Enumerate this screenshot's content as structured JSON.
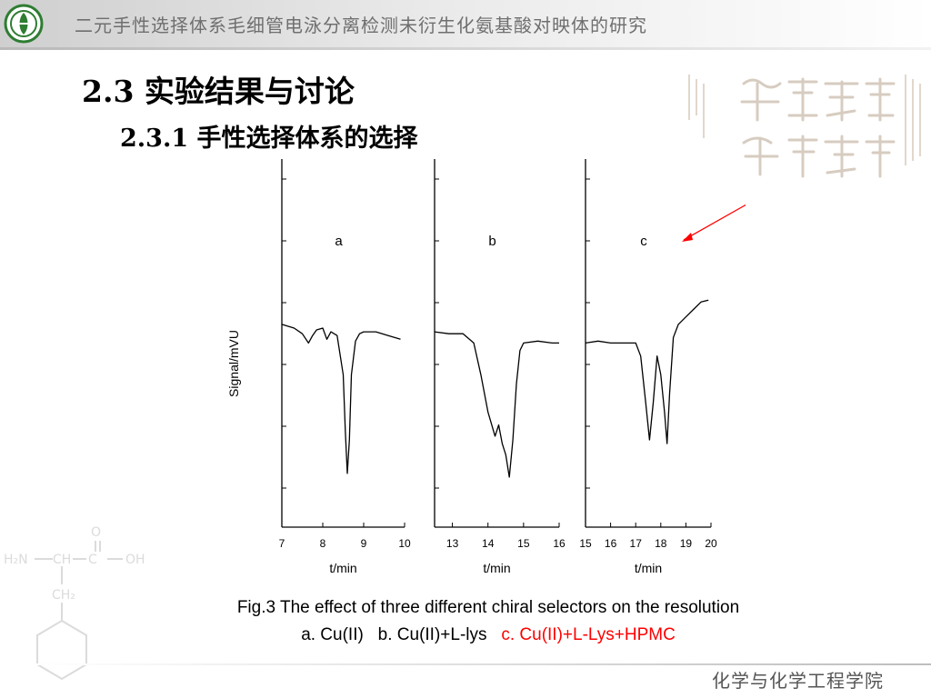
{
  "header": {
    "title": "二元手性选择体系毛细管电泳分离检测未衍生化氨基酸对映体的研究",
    "logo_icon": "university-emblem-icon"
  },
  "watermark": {
    "motto_icon": "calligraphy-motto-icon",
    "structure_icon": "amino-acid-structure-icon"
  },
  "slide": {
    "title": "2.3 实验结果与讨论",
    "subtitle": "2.3.1 手性选择体系的选择"
  },
  "chart_data": {
    "type": "line",
    "ylabel": "Signal/mVU",
    "annotation_color": "#ff0000",
    "panels": [
      {
        "label": "a",
        "xlabel": "t/min",
        "xlim": [
          7,
          10
        ],
        "ticks": [
          "7",
          "8",
          "9",
          "10"
        ],
        "x": [
          7.0,
          7.3,
          7.5,
          7.65,
          7.75,
          7.85,
          8.0,
          8.1,
          8.2,
          8.35,
          8.5,
          8.55,
          8.6,
          8.65,
          8.7,
          8.8,
          8.9,
          9.0,
          9.3,
          9.6,
          9.9
        ],
        "y": [
          0.82,
          0.8,
          0.77,
          0.72,
          0.76,
          0.79,
          0.8,
          0.74,
          0.78,
          0.76,
          0.55,
          0.25,
          0.02,
          0.2,
          0.55,
          0.73,
          0.77,
          0.78,
          0.78,
          0.76,
          0.74
        ]
      },
      {
        "label": "b",
        "xlabel": "t/min",
        "xlim": [
          12.5,
          16
        ],
        "ticks": [
          "13",
          "14",
          "15",
          "16"
        ],
        "x": [
          12.5,
          12.9,
          13.3,
          13.6,
          13.8,
          14.0,
          14.2,
          14.3,
          14.4,
          14.5,
          14.6,
          14.7,
          14.8,
          14.9,
          15.0,
          15.4,
          15.8,
          16.0
        ],
        "y": [
          0.78,
          0.77,
          0.77,
          0.72,
          0.55,
          0.35,
          0.22,
          0.28,
          0.18,
          0.12,
          0.0,
          0.2,
          0.5,
          0.68,
          0.72,
          0.73,
          0.72,
          0.72
        ]
      },
      {
        "label": "c",
        "xlabel": "t/min",
        "xlim": [
          15,
          20
        ],
        "ticks": [
          "15",
          "16",
          "17",
          "18",
          "19",
          "20"
        ],
        "x": [
          15.0,
          15.5,
          16.0,
          16.5,
          17.0,
          17.2,
          17.4,
          17.55,
          17.7,
          17.85,
          18.0,
          18.15,
          18.25,
          18.35,
          18.5,
          18.7,
          19.0,
          19.3,
          19.6,
          19.9
        ],
        "y": [
          0.72,
          0.73,
          0.72,
          0.72,
          0.72,
          0.65,
          0.4,
          0.2,
          0.4,
          0.65,
          0.55,
          0.35,
          0.18,
          0.45,
          0.75,
          0.82,
          0.86,
          0.9,
          0.94,
          0.95
        ]
      }
    ]
  },
  "caption": {
    "line1": "Fig.3 The effect of three different chiral selectors on the resolution",
    "item_a": "a. Cu(II)",
    "item_b": "b. Cu(II)+L-lys",
    "item_c": "c. Cu(II)+L-Lys+HPMC"
  },
  "footer": {
    "text": "化学与化学工程学院"
  }
}
